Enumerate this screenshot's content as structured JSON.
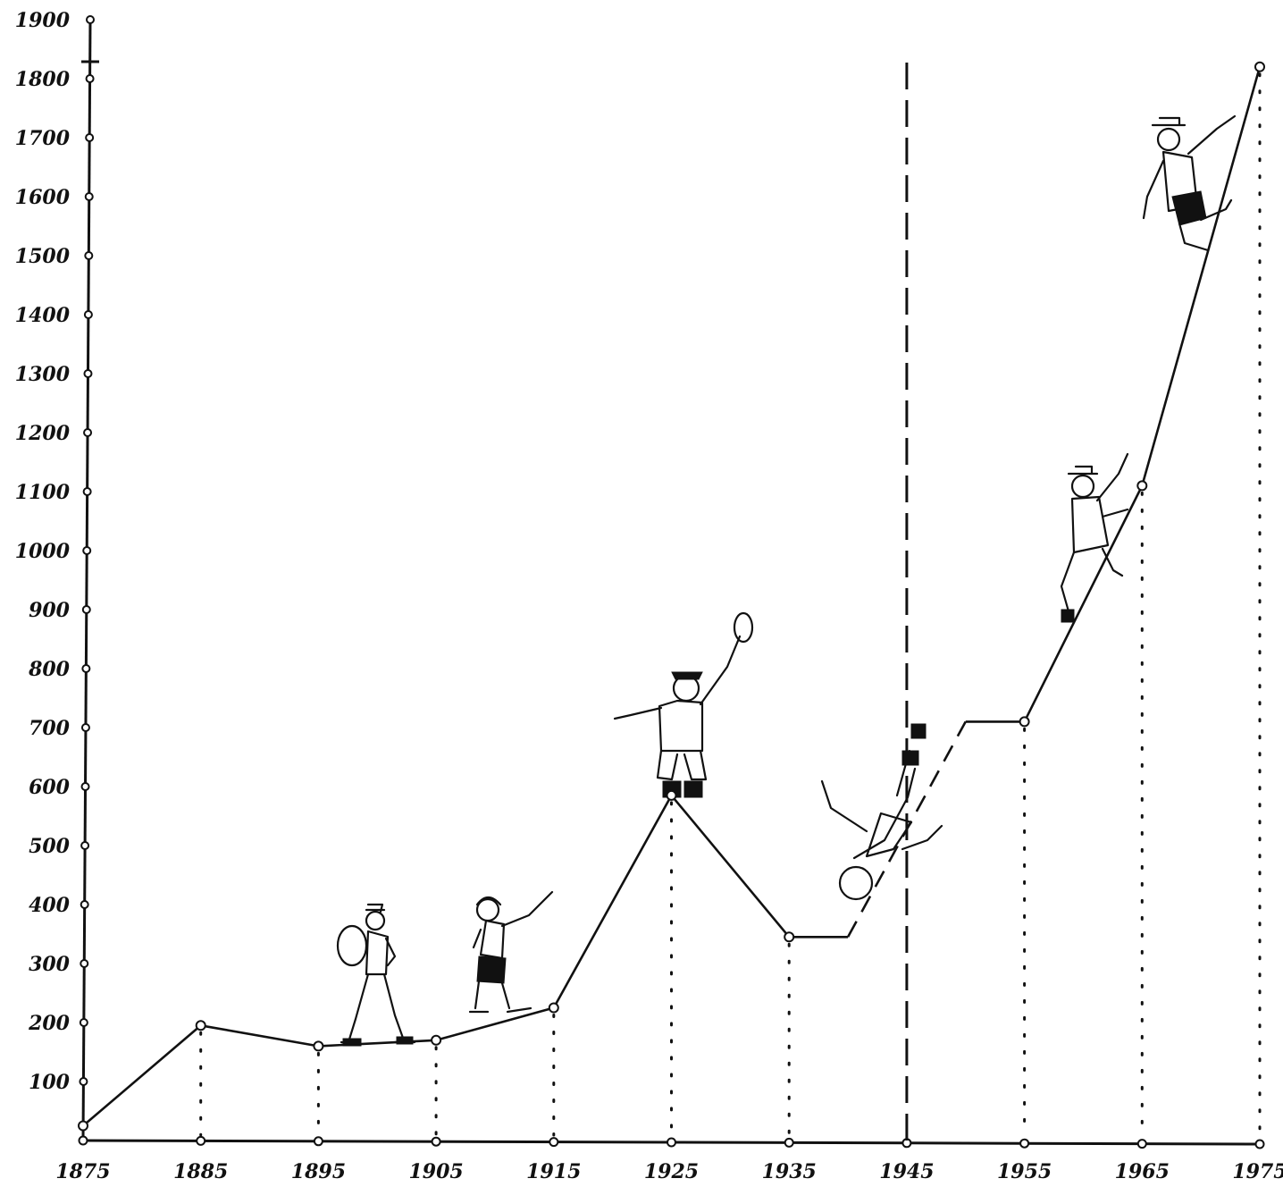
{
  "chart_data": {
    "type": "line",
    "title": "",
    "xlabel": "",
    "ylabel": "",
    "x_ticks": [
      "1875",
      "1885",
      "1895",
      "1905",
      "1915",
      "1925",
      "1935",
      "1945",
      "1955",
      "1965",
      "1975"
    ],
    "y_ticks": [
      "100",
      "200",
      "300",
      "400",
      "500",
      "600",
      "700",
      "800",
      "900",
      "1000",
      "1100",
      "1200",
      "1300",
      "1400",
      "1500",
      "1600",
      "1700",
      "1800",
      "1900"
    ],
    "xlim": [
      1875,
      1975
    ],
    "ylim": [
      0,
      1900
    ],
    "grid": false,
    "series": [
      {
        "values": [
          {
            "x": 1875,
            "y": 25
          },
          {
            "x": 1885,
            "y": 195
          },
          {
            "x": 1895,
            "y": 160
          },
          {
            "x": 1905,
            "y": 170
          },
          {
            "x": 1915,
            "y": 225
          },
          {
            "x": 1925,
            "y": 585
          },
          {
            "x": 1935,
            "y": 345
          },
          {
            "x": 1955,
            "y": 710
          },
          {
            "x": 1965,
            "y": 1110
          },
          {
            "x": 1975,
            "y": 1820
          }
        ]
      }
    ],
    "reference_lines": [
      {
        "axis": "x",
        "value": 1945,
        "style": "dashed"
      }
    ],
    "gap": {
      "from": 1935,
      "to": 1955,
      "style": "dashed"
    },
    "illustrations": [
      "hiker-with-backpack",
      "pointing-walker",
      "cheering-man-with-hat",
      "falling-man",
      "climber-lower",
      "climber-upper"
    ]
  }
}
